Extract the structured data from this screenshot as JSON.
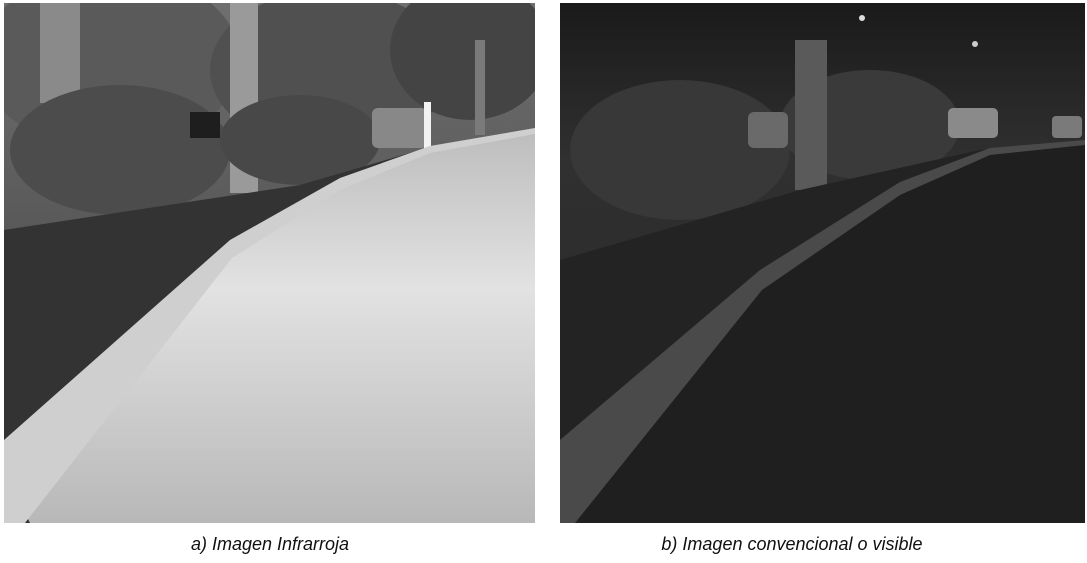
{
  "panels": [
    {
      "caption": "a) Imagen Infrarroja"
    },
    {
      "caption": "b) Imagen convencional o visible"
    }
  ]
}
